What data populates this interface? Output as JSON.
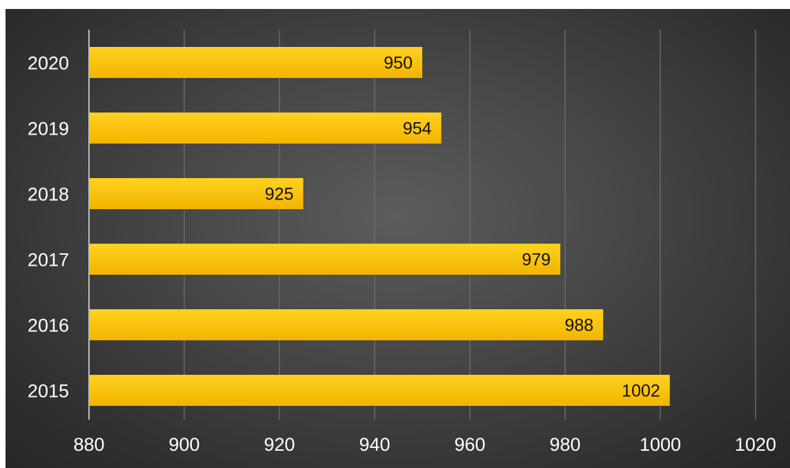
{
  "chart_data": {
    "type": "bar",
    "orientation": "horizontal",
    "categories": [
      "2020",
      "2019",
      "2018",
      "2017",
      "2016",
      "2015"
    ],
    "values": [
      950,
      954,
      925,
      979,
      988,
      1002
    ],
    "xlim": [
      880,
      1020
    ],
    "xticks": [
      "880",
      "900",
      "920",
      "940",
      "960",
      "980",
      "1000",
      "1020"
    ],
    "data_labels": [
      "950",
      "954",
      "925",
      "979",
      "988",
      "1002"
    ],
    "grid": true,
    "legend": "none",
    "colors": {
      "bar_top": "#ffd21f",
      "bar_bottom": "#f2b400",
      "grid": "#6a6a6a",
      "axis": "#bdbdbd",
      "text": "#ffffff",
      "data_label": "#111111"
    }
  }
}
